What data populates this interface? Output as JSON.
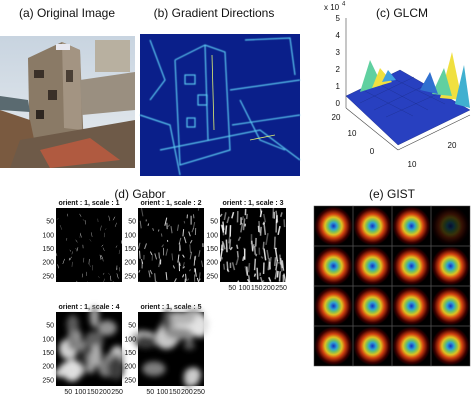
{
  "panels": {
    "a": {
      "title": "(a) Original Image"
    },
    "b": {
      "title": "(b) Gradient Directions"
    },
    "c": {
      "title": "(c) GLCM",
      "z_scale": "x 10",
      "z_exponent": "4",
      "z_ticks": [
        "0",
        "1",
        "2",
        "3",
        "4",
        "5"
      ],
      "left_ticks": [
        "20",
        "10",
        "0"
      ],
      "right_ticks": [
        "10",
        "20"
      ]
    },
    "d": {
      "title": "(d) Gabor",
      "subplots": [
        "orient : 1, scale : 1",
        "orient : 1, scale : 2",
        "orient : 1, scale : 3",
        "orient : 1, scale : 4",
        "orient : 1, scale : 5"
      ],
      "y_ticks": [
        "50",
        "100",
        "150",
        "200",
        "250"
      ],
      "x_ticks": [
        "50",
        "100",
        "150",
        "200",
        "250"
      ]
    },
    "e": {
      "title": "(e) GIST"
    }
  }
}
